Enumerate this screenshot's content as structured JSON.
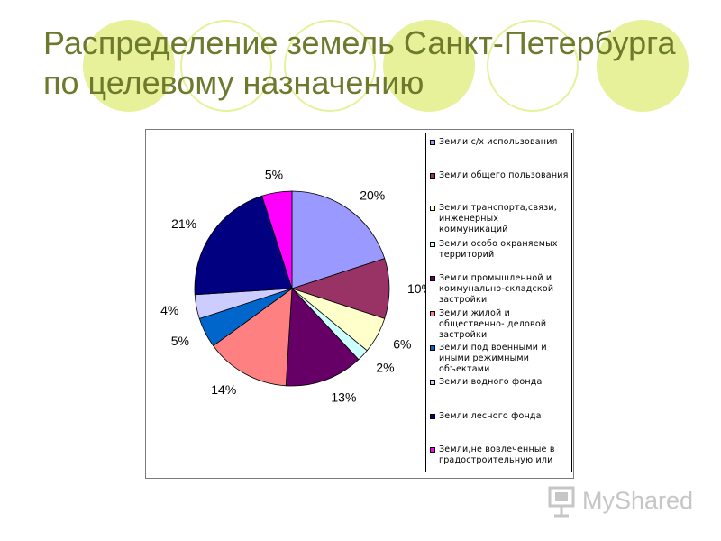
{
  "slide": {
    "title": "Распределение земель Санкт-Петербурга по целевому назначению",
    "logo_text": "MyShared"
  },
  "colors": {
    "title": "#6d7a2d",
    "decoration": "#e6f19a"
  },
  "chart_data": {
    "type": "pie",
    "title": "",
    "labels": [
      "Земли с/х использования",
      "Земли общего пользования",
      "Земли транспорта,связи, инженерных коммуникаций",
      "Земли особо охраняемых территорий",
      "Земли промышленной и коммунально-складской застройки",
      "Земли жилой и общественно- деловой застройки",
      "Земли под военными и иными режимными объектами",
      "Земли водного фонда",
      "Земли лесного фонда",
      "Земли,не вовлеченные в градостроительную или"
    ],
    "values": [
      20,
      10,
      6,
      2,
      13,
      14,
      5,
      4,
      21,
      5
    ],
    "value_labels": [
      "20%",
      "10%",
      "6%",
      "2%",
      "13%",
      "14%",
      "5%",
      "4%",
      "21%",
      "5%"
    ],
    "colors": [
      "#9999ff",
      "#993366",
      "#ffffcc",
      "#ccffff",
      "#660066",
      "#ff8080",
      "#0066cc",
      "#ccccff",
      "#000080",
      "#ff00ff"
    ],
    "legend_position": "right"
  }
}
